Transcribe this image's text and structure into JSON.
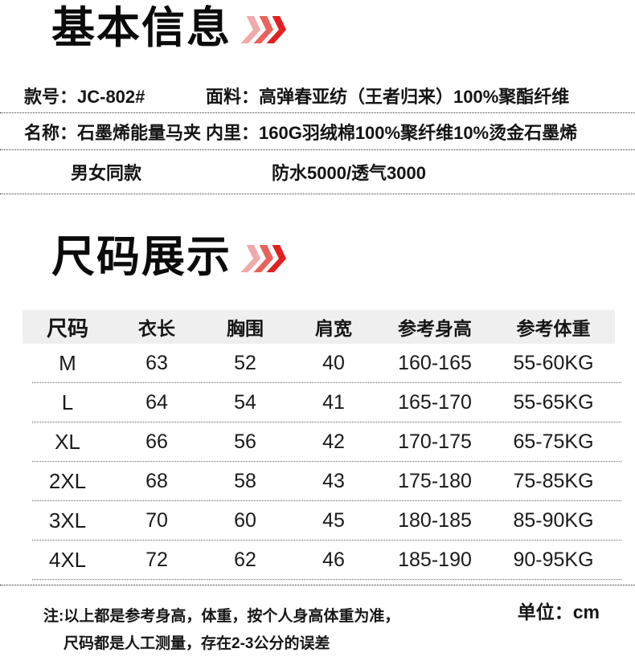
{
  "basic_info": {
    "title": "基本信息",
    "rows": [
      {
        "left": "款号：JC-802#",
        "right": "面料：高弹春亚纺（王者归来）100%聚酯纤维"
      },
      {
        "left": "名称：石墨烯能量马夹",
        "right": "内里：160G羽绒棉100%聚纤维10%烫金石墨烯"
      },
      {
        "left": "男女同款",
        "right": "防水5000/透气3000"
      }
    ]
  },
  "size_display": {
    "title": "尺码展示",
    "table": {
      "headers": [
        "尺码",
        "衣长",
        "胸围",
        "肩宽",
        "参考身高",
        "参考体重"
      ],
      "rows": [
        [
          "M",
          "63",
          "52",
          "40",
          "160-165",
          "55-60KG"
        ],
        [
          "L",
          "64",
          "54",
          "41",
          "165-170",
          "55-65KG"
        ],
        [
          "XL",
          "66",
          "56",
          "42",
          "170-175",
          "65-75KG"
        ],
        [
          "2XL",
          "68",
          "58",
          "43",
          "175-180",
          "75-85KG"
        ],
        [
          "3XL",
          "70",
          "60",
          "45",
          "180-185",
          "85-90KG"
        ],
        [
          "4XL",
          "72",
          "62",
          "46",
          "185-190",
          "90-95KG"
        ]
      ]
    },
    "notes": [
      "注:以上都是参考身高，体重，按个人身高体重为准，",
      "尺码都是人工测量，存在2-3公分的误差"
    ],
    "unit_label": "单位：cm"
  },
  "icons": {
    "section_arrows": "triple-chevron-right"
  },
  "colors": {
    "arrow_light": "#f2a9a9",
    "arrow_mid": "#ea625c",
    "arrow_dark": "#e32020",
    "table_header_bg": "#efefef",
    "text": "#111111",
    "divider": "#444444"
  }
}
